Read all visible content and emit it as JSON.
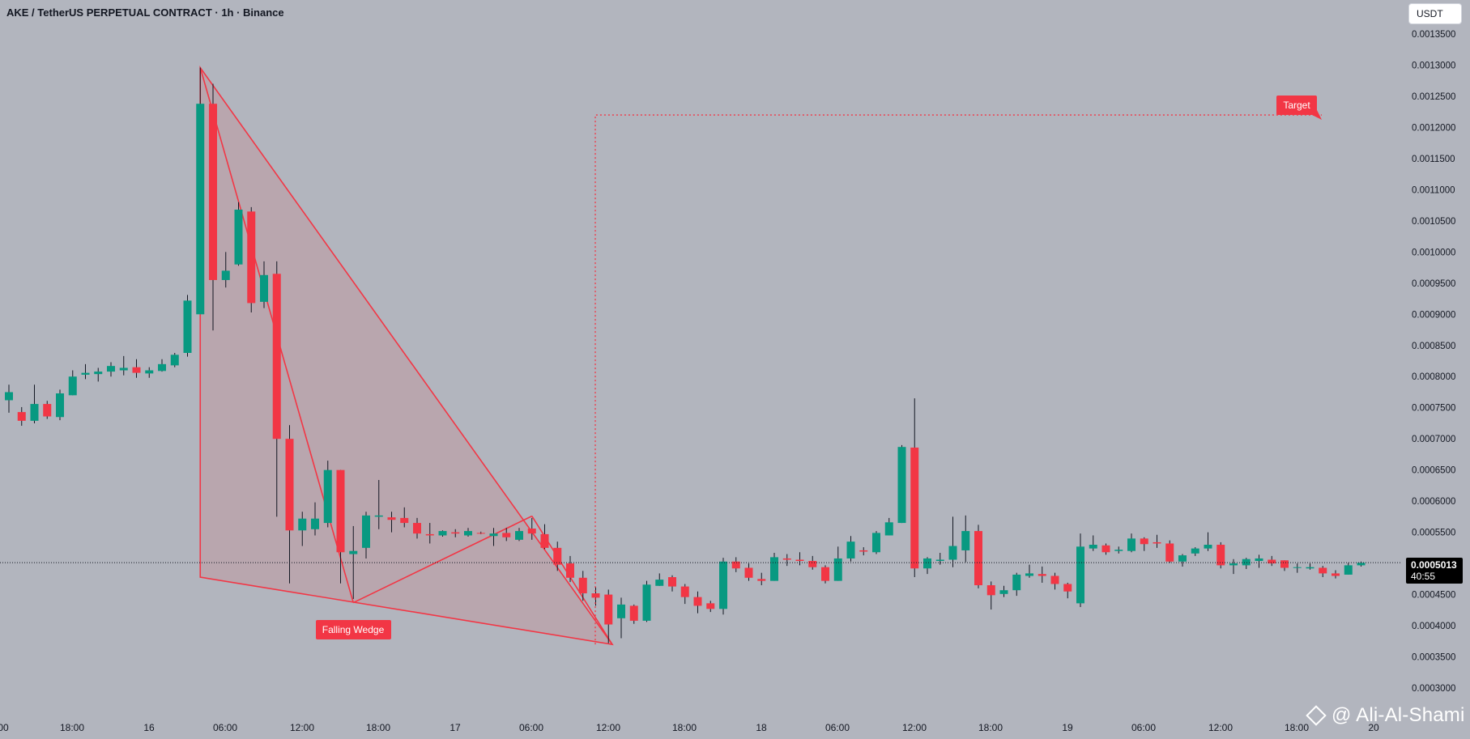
{
  "header": {
    "title": "AKE / TetherUS PERPETUAL CONTRACT · 1h · Binance",
    "currency": "USDT"
  },
  "price_tag": {
    "value": "0.0005013",
    "countdown": "40:55"
  },
  "watermark": "@ Ali-Al-Shami",
  "colors": {
    "background": "#b2b5be",
    "up": "#089981",
    "down": "#f23645",
    "wedge_fill": "rgba(242,54,69,0.12)",
    "wedge_line": "#f23645"
  },
  "chart_data": {
    "type": "candlestick",
    "x_axis_labels": [
      "00",
      "18:00",
      "16",
      "06:00",
      "12:00",
      "18:00",
      "17",
      "06:00",
      "12:00",
      "18:00",
      "18",
      "06:00",
      "12:00",
      "18:00",
      "19",
      "06:00",
      "12:00",
      "18:00",
      "20"
    ],
    "y_axis_labels": [
      "0.0013500",
      "0.0013000",
      "0.0012500",
      "0.0012000",
      "0.0011500",
      "0.0011000",
      "0.0010500",
      "0.0010000",
      "0.0009500",
      "0.0009000",
      "0.0008500",
      "0.0008000",
      "0.0007500",
      "0.0007000",
      "0.0006500",
      "0.0006000",
      "0.0005500",
      "0.0005000",
      "0.0004500",
      "0.0004000",
      "0.0003500",
      "0.0003000"
    ],
    "ylim": [
      0.0003,
      0.00135
    ],
    "current_price": 0.0005013,
    "candles": [
      [
        0.000762,
        0.000775,
        0.000742,
        0.000787
      ],
      [
        0.000743,
        0.000729,
        0.000721,
        0.000751
      ],
      [
        0.000729,
        0.000756,
        0.000725,
        0.000787
      ],
      [
        0.000756,
        0.000736,
        0.000732,
        0.000761
      ],
      [
        0.000735,
        0.000773,
        0.00073,
        0.000779
      ],
      [
        0.00077,
        0.0008,
        0.00077,
        0.00081
      ],
      [
        0.000803,
        0.000806,
        0.000796,
        0.00082
      ],
      [
        0.000804,
        0.000808,
        0.000792,
        0.000814
      ],
      [
        0.000808,
        0.000817,
        0.0008,
        0.000823
      ],
      [
        0.00081,
        0.000814,
        0.000802,
        0.000833
      ],
      [
        0.000815,
        0.000806,
        0.000798,
        0.000828
      ],
      [
        0.000805,
        0.00081,
        0.000798,
        0.000815
      ],
      [
        0.000809,
        0.00082,
        0.000808,
        0.000828
      ],
      [
        0.000818,
        0.000835,
        0.000815,
        0.000838
      ],
      [
        0.000838,
        0.000922,
        0.000832,
        0.000931
      ],
      [
        0.0009,
        0.001238,
        0.000902,
        0.001296
      ],
      [
        0.001238,
        0.000955,
        0.000874,
        0.00127
      ],
      [
        0.000955,
        0.00097,
        0.000943,
        0.001
      ],
      [
        0.00098,
        0.001068,
        0.000978,
        0.00108
      ],
      [
        0.001065,
        0.000918,
        0.000903,
        0.001072
      ],
      [
        0.00092,
        0.000963,
        0.00091,
        0.000985
      ],
      [
        0.000965,
        0.0007,
        0.000575,
        0.000985
      ],
      [
        0.0007,
        0.000553,
        0.000468,
        0.000722
      ],
      [
        0.000553,
        0.000572,
        0.000528,
        0.000583
      ],
      [
        0.000555,
        0.000572,
        0.000545,
        0.000598
      ],
      [
        0.000565,
        0.00065,
        0.000558,
        0.000665
      ],
      [
        0.00065,
        0.000518,
        0.000468,
        0.00065
      ],
      [
        0.000515,
        0.00052,
        0.000443,
        0.00056
      ],
      [
        0.000525,
        0.000577,
        0.000508,
        0.000583
      ],
      [
        0.000575,
        0.000577,
        0.000555,
        0.000634
      ],
      [
        0.000574,
        0.00057,
        0.00055,
        0.000583
      ],
      [
        0.000573,
        0.000565,
        0.000558,
        0.00059
      ],
      [
        0.000565,
        0.000548,
        0.00054,
        0.000573
      ],
      [
        0.000547,
        0.000545,
        0.000532,
        0.000565
      ],
      [
        0.000545,
        0.000552,
        0.000543,
        0.000553
      ],
      [
        0.00055,
        0.000548,
        0.000542,
        0.000555
      ],
      [
        0.000545,
        0.000552,
        0.000543,
        0.000557
      ],
      [
        0.000549,
        0.000548,
        0.000547,
        0.000551
      ],
      [
        0.000544,
        0.000548,
        0.000528,
        0.000557
      ],
      [
        0.000549,
        0.000542,
        0.000536,
        0.000557
      ],
      [
        0.000538,
        0.000552,
        0.000536,
        0.000557
      ],
      [
        0.000556,
        0.000548,
        0.000538,
        0.000573
      ],
      [
        0.000547,
        0.000525,
        0.000523,
        0.000563
      ],
      [
        0.000525,
        0.000498,
        0.000488,
        0.000535
      ],
      [
        0.0005,
        0.000477,
        0.00047,
        0.000512
      ],
      [
        0.000477,
        0.000452,
        0.00044,
        0.000488
      ],
      [
        0.000452,
        0.000445,
        0.000432,
        0.000462
      ],
      [
        0.00045,
        0.000402,
        0.000372,
        0.000458
      ],
      [
        0.000412,
        0.000434,
        0.00038,
        0.000445
      ],
      [
        0.000432,
        0.000408,
        0.000403,
        0.000434
      ],
      [
        0.000408,
        0.000466,
        0.000406,
        0.000472
      ],
      [
        0.000464,
        0.000474,
        0.000464,
        0.000484
      ],
      [
        0.000478,
        0.000463,
        0.000455,
        0.000481
      ],
      [
        0.000463,
        0.000446,
        0.000435,
        0.000467
      ],
      [
        0.000446,
        0.000432,
        0.00042,
        0.000455
      ],
      [
        0.000436,
        0.000427,
        0.000422,
        0.00044
      ],
      [
        0.000427,
        0.000503,
        0.000418,
        0.000509
      ],
      [
        0.000503,
        0.000492,
        0.000486,
        0.00051
      ],
      [
        0.000493,
        0.000477,
        0.000472,
        0.0005
      ],
      [
        0.000475,
        0.000472,
        0.000465,
        0.000485
      ],
      [
        0.000472,
        0.00051,
        0.000472,
        0.000517
      ],
      [
        0.000508,
        0.000506,
        0.000496,
        0.000515
      ],
      [
        0.000506,
        0.000504,
        0.000497,
        0.000518
      ],
      [
        0.000504,
        0.000494,
        0.00049,
        0.000512
      ],
      [
        0.000494,
        0.000472,
        0.000468,
        0.000497
      ],
      [
        0.000472,
        0.000508,
        0.000472,
        0.000527
      ],
      [
        0.000508,
        0.000535,
        0.000503,
        0.000544
      ],
      [
        0.000521,
        0.000519,
        0.000513,
        0.000526
      ],
      [
        0.000518,
        0.000549,
        0.000515,
        0.000552
      ],
      [
        0.000545,
        0.000566,
        0.000545,
        0.000573
      ],
      [
        0.000565,
        0.000687,
        0.000565,
        0.00069
      ],
      [
        0.000686,
        0.000492,
        0.000478,
        0.000765
      ],
      [
        0.000492,
        0.000508,
        0.000483,
        0.00051
      ],
      [
        0.000504,
        0.000506,
        0.000498,
        0.000517
      ],
      [
        0.000506,
        0.000528,
        0.000494,
        0.000575
      ],
      [
        0.000521,
        0.000552,
        0.000502,
        0.000577
      ],
      [
        0.000552,
        0.000465,
        0.00046,
        0.000562
      ],
      [
        0.000465,
        0.000449,
        0.000426,
        0.000471
      ],
      [
        0.000451,
        0.000457,
        0.000446,
        0.000464
      ],
      [
        0.000457,
        0.000482,
        0.000448,
        0.000485
      ],
      [
        0.00048,
        0.000484,
        0.000477,
        0.000498
      ],
      [
        0.000483,
        0.00048,
        0.000469,
        0.000495
      ],
      [
        0.00048,
        0.000467,
        0.000458,
        0.000485
      ],
      [
        0.000467,
        0.000455,
        0.000444,
        0.000469
      ],
      [
        0.000436,
        0.000527,
        0.00043,
        0.000548
      ],
      [
        0.000524,
        0.00053,
        0.00052,
        0.000545
      ],
      [
        0.000529,
        0.000518,
        0.000514,
        0.000532
      ],
      [
        0.00052,
        0.000522,
        0.000516,
        0.000527
      ],
      [
        0.00052,
        0.00054,
        0.000518,
        0.000548
      ],
      [
        0.00054,
        0.000531,
        0.00052,
        0.000542
      ],
      [
        0.000534,
        0.000532,
        0.000525,
        0.000546
      ],
      [
        0.000532,
        0.000503,
        0.000501,
        0.000537
      ],
      [
        0.000503,
        0.000513,
        0.000495,
        0.000515
      ],
      [
        0.000516,
        0.000524,
        0.000512,
        0.000526
      ],
      [
        0.000524,
        0.00053,
        0.00052,
        0.00055
      ],
      [
        0.00053,
        0.000497,
        0.000492,
        0.000534
      ],
      [
        0.000497,
        0.0005,
        0.000483,
        0.000507
      ],
      [
        0.000497,
        0.000507,
        0.000491,
        0.000509
      ],
      [
        0.000504,
        0.000508,
        0.000493,
        0.000514
      ],
      [
        0.000506,
        0.0005,
        0.000496,
        0.000512
      ],
      [
        0.000505,
        0.000493,
        0.000488,
        0.000505
      ],
      [
        0.000493,
        0.000494,
        0.000485,
        0.0005
      ],
      [
        0.000492,
        0.000494,
        0.00049,
        0.0005
      ],
      [
        0.000493,
        0.000484,
        0.000478,
        0.000496
      ],
      [
        0.000484,
        0.00048,
        0.000476,
        0.000489
      ],
      [
        0.000482,
        0.000497,
        0.000482,
        0.000501
      ],
      [
        0.000497,
        0.000501,
        0.000495,
        0.000503
      ]
    ],
    "annotations": [
      {
        "type": "label",
        "text": "Falling Wedge"
      },
      {
        "type": "label",
        "text": "Target",
        "price": 0.00122
      }
    ]
  }
}
